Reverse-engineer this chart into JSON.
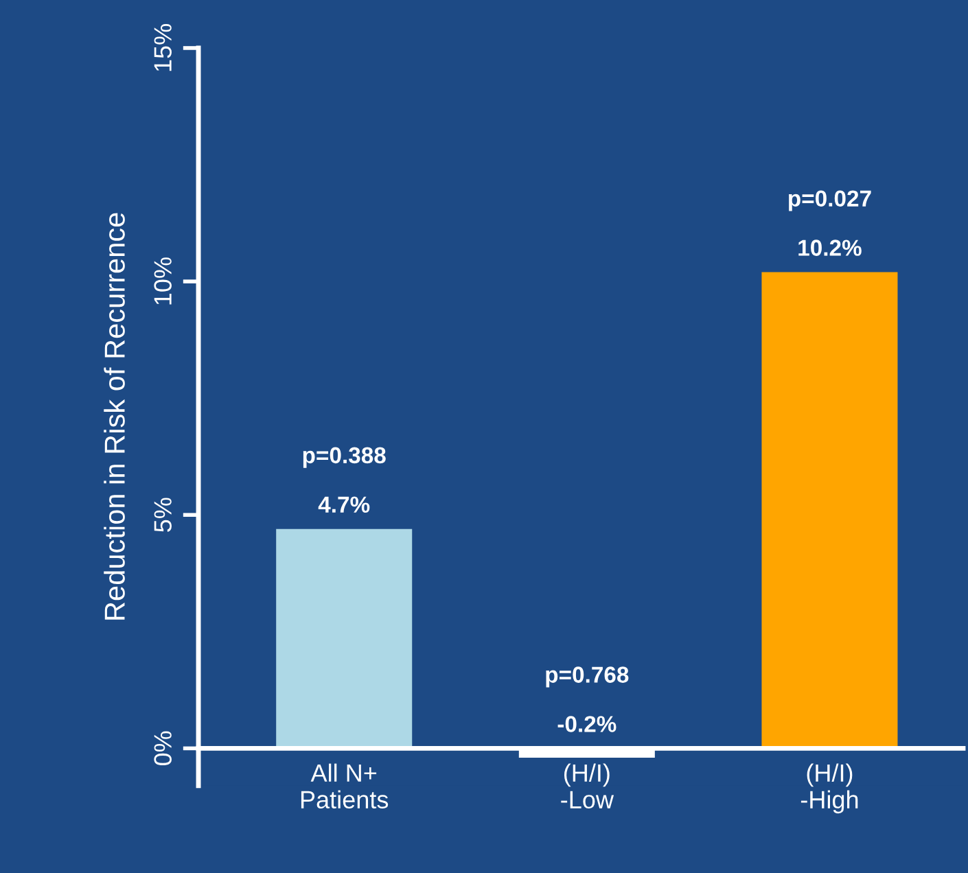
{
  "chart_data": {
    "type": "bar",
    "ylabel": "Reduction in Risk of Recurrence",
    "categories": [
      "All N+\nPatients",
      "(H/I)\n-Low",
      "(H/I)\n-High"
    ],
    "values": [
      4.7,
      -0.2,
      10.2
    ],
    "colors": [
      "#add8e6",
      "#ffffff",
      "#ffa500"
    ],
    "value_labels": [
      "4.7%",
      "-0.2%",
      "10.2%"
    ],
    "annotations": [
      "p=0.388",
      "p=0.768",
      "p=0.027"
    ],
    "ylim": [
      -0.8,
      15
    ],
    "yticks": [
      {
        "value": 0,
        "label": "0%"
      },
      {
        "value": 5,
        "label": "5%"
      },
      {
        "value": 10,
        "label": "10%"
      },
      {
        "value": 15,
        "label": "15%"
      }
    ],
    "grid": false
  }
}
